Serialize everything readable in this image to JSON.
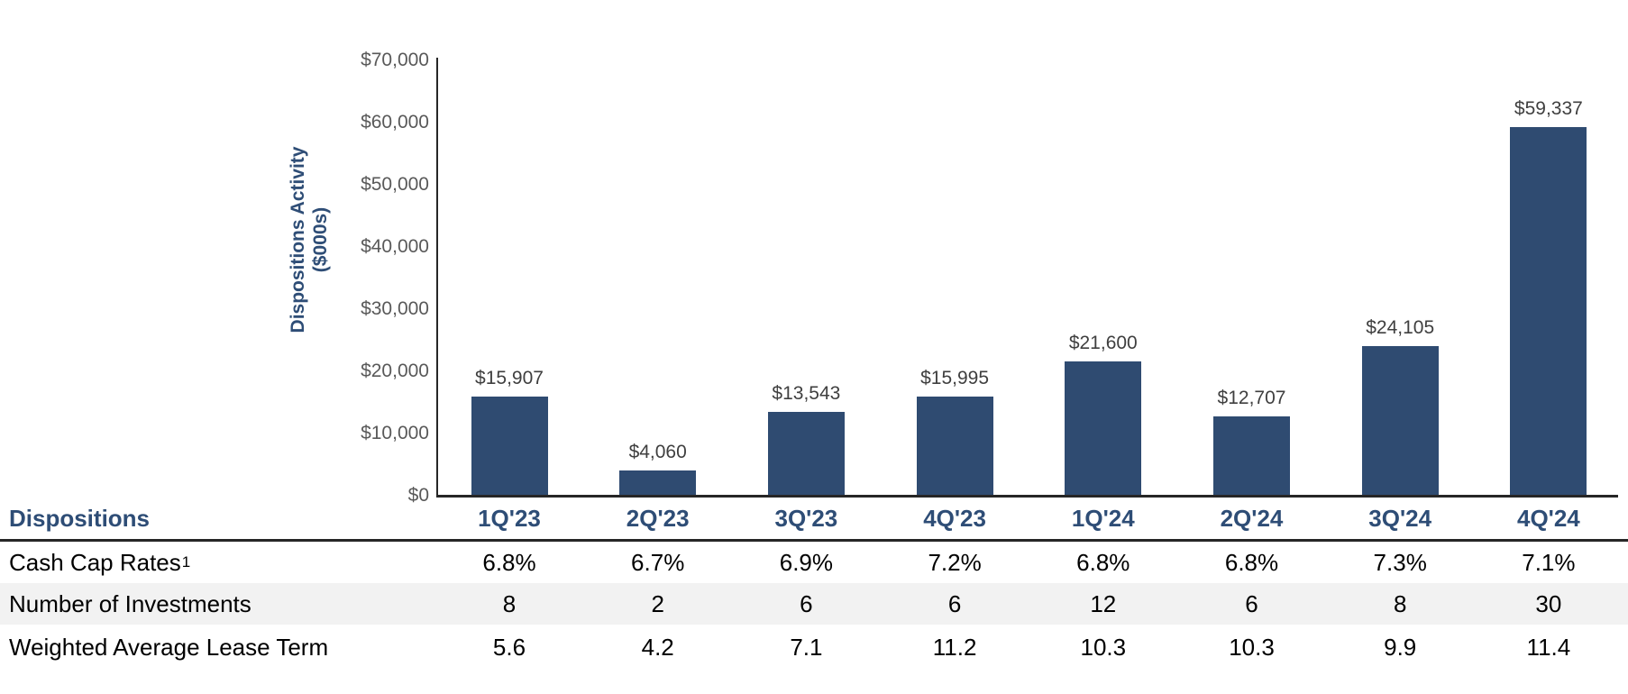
{
  "chart_data": {
    "type": "bar",
    "categories": [
      "1Q'23",
      "2Q'23",
      "3Q'23",
      "4Q'23",
      "1Q'24",
      "2Q'24",
      "3Q'24",
      "4Q'24"
    ],
    "values": [
      15907,
      4060,
      13543,
      15995,
      21600,
      12707,
      24105,
      59337
    ],
    "value_labels": [
      "$15,907",
      "$4,060",
      "$13,543",
      "$15,995",
      "$21,600",
      "$12,707",
      "$24,105",
      "$59,337"
    ],
    "ylabel_line1": "Dispositions Activity",
    "ylabel_line2": "($000s)",
    "ylim": [
      0,
      70000
    ],
    "ytick_interval": 10000,
    "ytick_labels": [
      "$0",
      "$10,000",
      "$20,000",
      "$30,000",
      "$40,000",
      "$50,000",
      "$60,000",
      "$70,000"
    ],
    "grid": false,
    "legend": "none"
  },
  "table": {
    "header": {
      "label": "Dispositions"
    },
    "rows": [
      {
        "id": "cash-cap-rates",
        "label": "Cash Cap Rates",
        "sup": "1",
        "striped": false,
        "values": [
          "6.8%",
          "6.7%",
          "6.9%",
          "7.2%",
          "6.8%",
          "6.8%",
          "7.3%",
          "7.1%"
        ]
      },
      {
        "id": "number-of-investments",
        "label": "Number of Investments",
        "sup": "",
        "striped": true,
        "values": [
          "8",
          "2",
          "6",
          "6",
          "12",
          "6",
          "8",
          "30"
        ]
      },
      {
        "id": "weighted-average-lease-term",
        "label": "Weighted Average Lease Term",
        "sup": "",
        "striped": false,
        "values": [
          "5.6",
          "4.2",
          "7.1",
          "11.2",
          "10.3",
          "10.3",
          "9.9",
          "11.4"
        ]
      }
    ]
  },
  "colors": {
    "bar": "#2F4B71",
    "accent_blue": "#2E4D76",
    "tick_gray": "#595959",
    "data_label_gray": "#3F3F3F",
    "stripe_gray": "#F2F2F2",
    "axis_line": "#262626"
  }
}
